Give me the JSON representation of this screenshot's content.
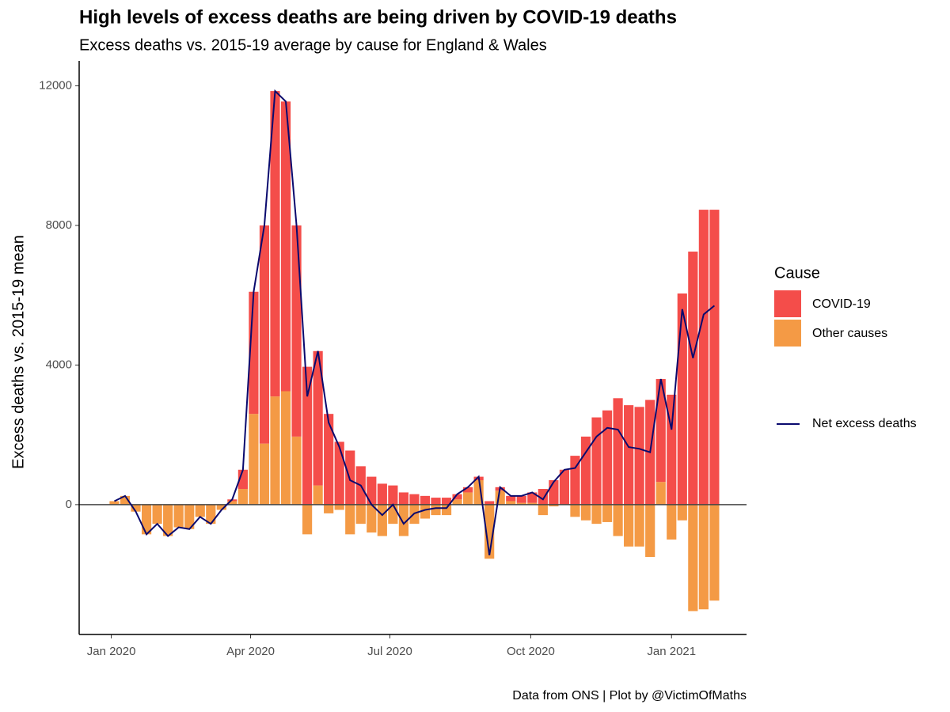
{
  "chart_data": {
    "type": "bar",
    "title": "High levels of excess deaths are being driven by COVID-19 deaths",
    "subtitle": "Excess deaths vs. 2015-19 average by cause for England & Wales",
    "y_label": "Excess deaths vs. 2015-19 mean",
    "caption": "Data from ONS | Plot by @VictimOfMaths",
    "legend_title": "Cause",
    "stacked": true,
    "x": [
      "2020-01-03",
      "2020-01-10",
      "2020-01-17",
      "2020-01-24",
      "2020-01-31",
      "2020-02-07",
      "2020-02-14",
      "2020-02-21",
      "2020-02-28",
      "2020-03-06",
      "2020-03-13",
      "2020-03-20",
      "2020-03-27",
      "2020-04-03",
      "2020-04-10",
      "2020-04-17",
      "2020-04-24",
      "2020-05-01",
      "2020-05-08",
      "2020-05-15",
      "2020-05-22",
      "2020-05-29",
      "2020-06-05",
      "2020-06-12",
      "2020-06-19",
      "2020-06-26",
      "2020-07-03",
      "2020-07-10",
      "2020-07-17",
      "2020-07-24",
      "2020-07-31",
      "2020-08-07",
      "2020-08-14",
      "2020-08-21",
      "2020-08-28",
      "2020-09-04",
      "2020-09-11",
      "2020-09-18",
      "2020-09-25",
      "2020-10-02",
      "2020-10-09",
      "2020-10-16",
      "2020-10-23",
      "2020-10-30",
      "2020-11-06",
      "2020-11-13",
      "2020-11-20",
      "2020-11-27",
      "2020-12-04",
      "2020-12-11",
      "2020-12-18",
      "2020-12-25",
      "2021-01-01",
      "2021-01-08",
      "2021-01-15",
      "2021-01-22",
      "2021-01-29"
    ],
    "series": [
      {
        "name": "COVID-19",
        "color": "#f44d4a",
        "values": [
          0,
          0,
          0,
          0,
          0,
          0,
          0,
          0,
          0,
          0,
          0,
          50,
          550,
          3500,
          6250,
          8750,
          8300,
          6050,
          3950,
          3850,
          2600,
          1800,
          1550,
          1100,
          800,
          600,
          550,
          350,
          300,
          250,
          200,
          200,
          150,
          150,
          100,
          100,
          100,
          150,
          200,
          300,
          450,
          700,
          1000,
          1400,
          1950,
          2500,
          2700,
          3050,
          2850,
          2800,
          3000,
          2950,
          3150,
          6050,
          7250,
          8450,
          8450
        ]
      },
      {
        "name": "Other causes",
        "color": "#f49a45",
        "values": [
          100,
          250,
          -200,
          -850,
          -550,
          -900,
          -650,
          -700,
          -350,
          -550,
          -150,
          100,
          450,
          2600,
          1750,
          3100,
          3250,
          1950,
          -850,
          550,
          -250,
          -150,
          -850,
          -550,
          -800,
          -900,
          -550,
          -900,
          -550,
          -400,
          -300,
          -300,
          150,
          350,
          700,
          -1550,
          400,
          100,
          50,
          50,
          -300,
          -50,
          0,
          -350,
          -450,
          -550,
          -500,
          -900,
          -1200,
          -1200,
          -1500,
          650,
          -1000,
          -450,
          -3050,
          -3000,
          -2750
        ]
      },
      {
        "name": "Net excess deaths",
        "type": "line",
        "color": "#0a0a6e",
        "values": [
          100,
          250,
          -200,
          -850,
          -550,
          -900,
          -650,
          -700,
          -350,
          -550,
          -150,
          150,
          1000,
          6100,
          8000,
          11850,
          11550,
          8000,
          3100,
          4400,
          2350,
          1650,
          700,
          550,
          0,
          -300,
          0,
          -550,
          -250,
          -150,
          -100,
          -100,
          300,
          500,
          800,
          -1450,
          500,
          250,
          250,
          350,
          150,
          650,
          1000,
          1050,
          1500,
          1950,
          2200,
          2150,
          1650,
          1600,
          1500,
          3600,
          2150,
          5600,
          4200,
          5450,
          5700
        ]
      }
    ],
    "xlim": [
      "2019-12-11",
      "2021-02-19"
    ],
    "xticks": [
      {
        "value": "2020-01-01",
        "label": "Jan 2020"
      },
      {
        "value": "2020-04-01",
        "label": "Apr 2020"
      },
      {
        "value": "2020-07-01",
        "label": "Jul 2020"
      },
      {
        "value": "2020-10-01",
        "label": "Oct 2020"
      },
      {
        "value": "2021-01-01",
        "label": "Jan 2021"
      }
    ],
    "ylim": [
      -3720,
      12600
    ],
    "yticks": [
      0,
      4000,
      8000,
      12000
    ],
    "grid": false,
    "zero_line": true,
    "legend_position": "right"
  }
}
